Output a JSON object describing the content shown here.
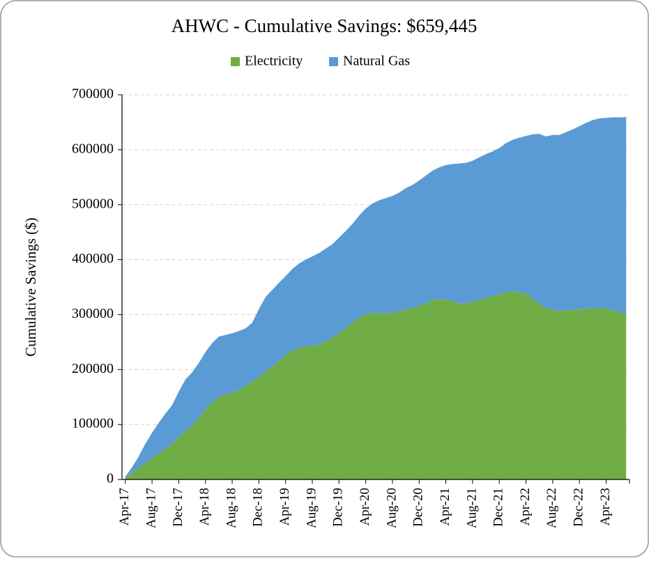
{
  "chart_data": {
    "type": "stacked_area",
    "title": "AHWC - Cumulative Savings: $659,445",
    "y_label": "Cumulative Savings ($)",
    "categories": [
      "Apr-17",
      null,
      null,
      null,
      "Aug-17",
      null,
      null,
      null,
      "Dec-17",
      null,
      null,
      null,
      "Apr-18",
      null,
      null,
      null,
      "Aug-18",
      null,
      null,
      null,
      "Dec-18",
      null,
      null,
      null,
      "Apr-19",
      null,
      null,
      null,
      "Aug-19",
      null,
      null,
      null,
      "Dec-19",
      null,
      null,
      null,
      "Apr-20",
      null,
      null,
      null,
      "Aug-20",
      null,
      null,
      null,
      "Dec-20",
      null,
      null,
      null,
      "Apr-21",
      null,
      null,
      null,
      "Aug-21",
      null,
      null,
      null,
      "Dec-21",
      null,
      null,
      null,
      "Apr-22",
      null,
      null,
      null,
      "Aug-22",
      null,
      null,
      null,
      "Dec-22",
      null,
      null,
      null,
      "Apr-23",
      null,
      null,
      null
    ],
    "series": [
      {
        "name": "Electricity",
        "color": "#70ad47",
        "values": [
          3000,
          12000,
          22000,
          30000,
          40000,
          47000,
          55000,
          65000,
          78000,
          88000,
          98000,
          112000,
          128000,
          140000,
          150000,
          155000,
          158000,
          163000,
          170000,
          178000,
          186000,
          196000,
          206000,
          216000,
          226000,
          234000,
          240000,
          242000,
          243000,
          246000,
          252000,
          258000,
          266000,
          276000,
          286000,
          294000,
          300000,
          303000,
          303000,
          303000,
          303000,
          306000,
          309000,
          312000,
          316000,
          321000,
          326000,
          328000,
          328000,
          325000,
          320000,
          320000,
          323000,
          327000,
          330000,
          333000,
          337000,
          341000,
          342000,
          341000,
          338000,
          330000,
          320000,
          312000,
          308000,
          307000,
          308000,
          309000,
          310000,
          311000,
          312000,
          312000,
          311000,
          308000,
          304000,
          301000
        ]
      },
      {
        "name": "Natural Gas",
        "color": "#5b9bd5",
        "values": [
          2000,
          10000,
          20000,
          35000,
          45000,
          56000,
          65000,
          70000,
          82000,
          94000,
          97000,
          100000,
          104000,
          108000,
          110000,
          108000,
          108000,
          107000,
          105000,
          107000,
          124000,
          136000,
          139000,
          142000,
          144000,
          149000,
          153000,
          158000,
          163000,
          166000,
          168000,
          170000,
          174000,
          176000,
          179000,
          186000,
          193000,
          199000,
          205000,
          209000,
          213000,
          216000,
          221000,
          224000,
          228000,
          232000,
          236000,
          240000,
          244000,
          249000,
          255000,
          256000,
          257000,
          259000,
          262000,
          264000,
          266000,
          271000,
          276000,
          281000,
          287000,
          298000,
          309000,
          312000,
          319000,
          320000,
          324000,
          328000,
          333000,
          338000,
          342000,
          345000,
          347000,
          351000,
          355000,
          358445
        ]
      }
    ],
    "ylim": [
      0,
      700000
    ],
    "yticks": [
      0,
      100000,
      200000,
      300000,
      400000,
      500000,
      600000,
      700000
    ],
    "grid": true,
    "legend": "top"
  }
}
